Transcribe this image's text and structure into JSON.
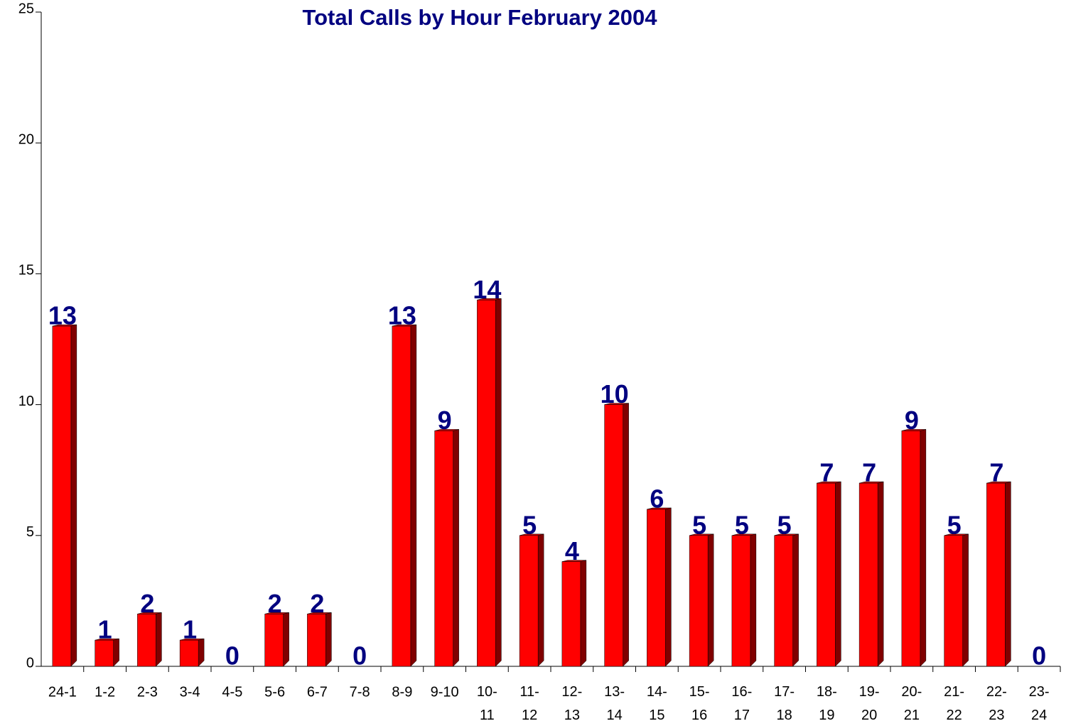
{
  "chart_data": {
    "type": "bar",
    "title": "Total Calls by Hour February 2004",
    "categories": [
      "24-1",
      "1-2",
      "2-3",
      "3-4",
      "4-5",
      "5-6",
      "6-7",
      "7-8",
      "8-9",
      "9-10",
      "10-11",
      "11-12",
      "12-13",
      "13-14",
      "14-15",
      "15-16",
      "16-17",
      "17-18",
      "18-19",
      "19-20",
      "20-21",
      "21-22",
      "22-23",
      "23-24"
    ],
    "values": [
      13,
      1,
      2,
      1,
      0,
      2,
      2,
      0,
      13,
      9,
      14,
      5,
      4,
      10,
      6,
      5,
      5,
      5,
      7,
      7,
      9,
      5,
      7,
      0
    ],
    "color": "#ff0000",
    "ylim": [
      0,
      25
    ],
    "yticks": [
      0,
      5,
      10,
      15,
      20,
      25
    ],
    "grid": false
  }
}
